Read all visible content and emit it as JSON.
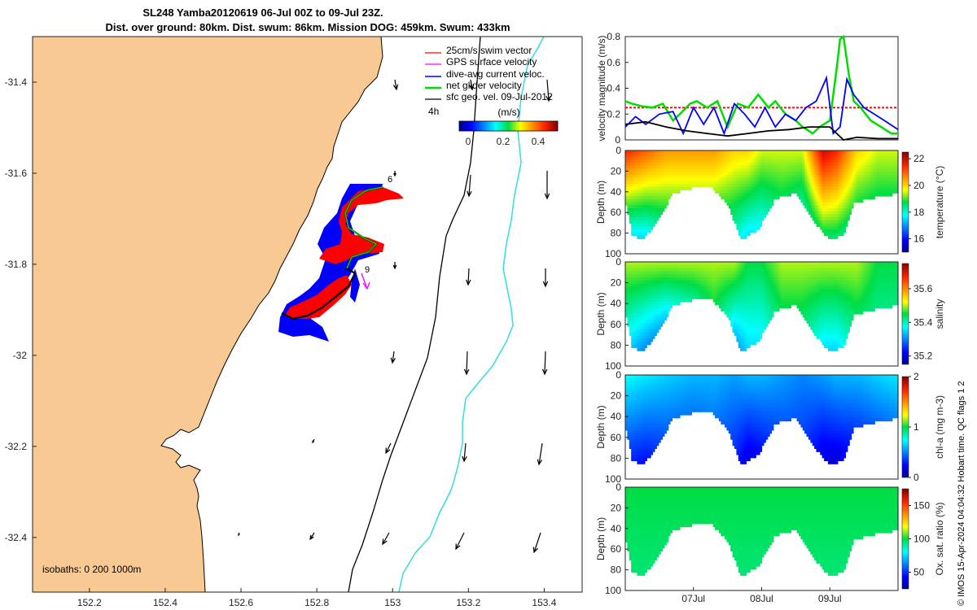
{
  "title": {
    "line1": "SL248 Yamba20120619 06-Jul 00Z to 09-Jul 23Z.",
    "line2": "Dist. over ground: 80km. Dist. swum: 86km. Mission DOG: 459km. Swum: 433km"
  },
  "map": {
    "x_ticks": [
      "152.2",
      "152.4",
      "152.6",
      "152.8",
      "153",
      "153.2",
      "153.4"
    ],
    "y_ticks": [
      "-31.4",
      "-31.6",
      "-31.8",
      "-32",
      "-32.2",
      "-32.4"
    ],
    "xlim": [
      152.05,
      153.5
    ],
    "ylim": [
      -32.52,
      -31.3
    ],
    "legend": [
      {
        "label": "25cm/s swim vector",
        "color": "#ff0000"
      },
      {
        "label": "GPS surface velocity",
        "color": "#ff00ff"
      },
      {
        "label": "dive-avg current veloc.",
        "color": "#0000ff"
      },
      {
        "label": "net glider velocity",
        "color": "#00dd00"
      },
      {
        "label": "sfc geo. vel. 09-Jul-2012",
        "color": "#000000"
      }
    ],
    "interval_label": "4h",
    "colorbar": {
      "label": "(m/s)",
      "ticks": [
        "0",
        "0.2",
        "0.4"
      ]
    },
    "day_markers": [
      "6",
      "9"
    ],
    "isobaths_label": "isobaths: 0   200  1000m",
    "land_color": "#f9c994"
  },
  "colors": {
    "red": "#ff0000",
    "blue": "#0000ff",
    "green": "#00dd00",
    "black": "#000000",
    "cyan": "#33dddd"
  },
  "chart_data": [
    {
      "type": "line",
      "title": "",
      "ylabel": "velocity magnitude (m/s)",
      "ylim": [
        0,
        0.8
      ],
      "y_ticks": [
        "0",
        "0.2",
        "0.4",
        "0.6",
        "0.8"
      ],
      "x_day_range": [
        6.0,
        10.0
      ],
      "series": [
        {
          "name": "25cm/s swim vector",
          "color": "#ff0000",
          "x": [
            6.0,
            10.0
          ],
          "y": [
            0.25,
            0.25
          ]
        },
        {
          "name": "net glider velocity",
          "color": "#00dd00",
          "x": [
            6.0,
            6.1,
            6.25,
            6.4,
            6.55,
            6.7,
            6.8,
            6.95,
            7.05,
            7.2,
            7.35,
            7.5,
            7.65,
            7.8,
            7.95,
            8.1,
            8.2,
            8.35,
            8.5,
            8.6,
            8.75,
            8.85,
            9.0,
            9.1,
            9.15,
            9.2,
            9.28,
            9.35,
            9.45,
            9.6,
            9.75,
            9.9,
            10.0
          ],
          "y": [
            0.3,
            0.28,
            0.26,
            0.25,
            0.28,
            0.15,
            0.2,
            0.28,
            0.3,
            0.25,
            0.3,
            0.1,
            0.28,
            0.25,
            0.35,
            0.25,
            0.3,
            0.2,
            0.15,
            0.1,
            0.05,
            0.1,
            0.15,
            0.55,
            0.78,
            0.8,
            0.5,
            0.3,
            0.25,
            0.15,
            0.1,
            0.05,
            0.05
          ]
        },
        {
          "name": "dive-avg current veloc.",
          "color": "#0000ff",
          "x": [
            6.0,
            6.15,
            6.3,
            6.5,
            6.7,
            6.85,
            7.0,
            7.15,
            7.3,
            7.45,
            7.6,
            7.75,
            7.9,
            8.05,
            8.2,
            8.35,
            8.5,
            8.65,
            8.8,
            8.95,
            9.05,
            9.15,
            9.25,
            9.35,
            9.5,
            9.65,
            9.8,
            10.0
          ],
          "y": [
            0.1,
            0.18,
            0.12,
            0.2,
            0.22,
            0.05,
            0.25,
            0.12,
            0.25,
            0.05,
            0.28,
            0.2,
            0.1,
            0.25,
            0.1,
            0.2,
            0.15,
            0.25,
            0.3,
            0.48,
            0.05,
            0.1,
            0.47,
            0.35,
            0.25,
            0.2,
            0.15,
            0.08
          ]
        },
        {
          "name": "sfc geo. vel. 09-Jul-2012",
          "color": "#000000",
          "x": [
            6.0,
            6.3,
            6.6,
            6.9,
            7.2,
            7.5,
            7.8,
            8.1,
            8.4,
            8.7,
            9.0,
            9.2,
            9.4,
            9.7,
            10.0
          ],
          "y": [
            0.12,
            0.14,
            0.1,
            0.07,
            0.05,
            0.03,
            0.05,
            0.07,
            0.08,
            0.1,
            0.1,
            0.0,
            0.02,
            0.01,
            0.01
          ]
        }
      ]
    },
    {
      "type": "heatmap",
      "ylabel": "Depth (m)",
      "clabel": "temperature (°C)",
      "ylim": [
        100,
        0
      ],
      "y_ticks": [
        "0",
        "20",
        "40",
        "60",
        "80",
        "100"
      ],
      "c_ticks": [
        "22",
        "20",
        "18",
        "16"
      ],
      "crange": [
        15,
        22.5
      ],
      "x_day_range": [
        6.0,
        10.0
      ],
      "profile_depth": {
        "x": [
          6.0,
          6.1,
          6.25,
          6.45,
          6.7,
          7.0,
          7.25,
          7.5,
          7.7,
          7.95,
          8.2,
          8.5,
          8.8,
          9.0,
          9.2,
          9.35,
          9.6,
          10.0
        ],
        "y": [
          45,
          80,
          85,
          70,
          40,
          35,
          33,
          50,
          85,
          75,
          45,
          40,
          70,
          85,
          80,
          50,
          45,
          40
        ]
      },
      "columns": {
        "x": [
          6.0,
          6.3,
          6.6,
          7.0,
          7.3,
          7.6,
          7.8,
          8.0,
          8.3,
          8.6,
          8.9,
          9.1,
          9.4,
          9.7,
          10.0
        ],
        "surface": [
          21.5,
          21.0,
          20.5,
          20.5,
          20.5,
          20.0,
          20.0,
          19.5,
          19.5,
          19.5,
          22.0,
          21.5,
          20.0,
          19.5,
          19.5
        ],
        "bottom": [
          17.5,
          17.5,
          18.0,
          18.0,
          18.0,
          18.0,
          17.5,
          17.5,
          18.0,
          17.5,
          18.5,
          18.5,
          18.0,
          18.0,
          18.0
        ]
      }
    },
    {
      "type": "heatmap",
      "ylabel": "Depth (m)",
      "clabel": "salinity",
      "ylim": [
        100,
        0
      ],
      "y_ticks": [
        "0",
        "20",
        "40",
        "60",
        "80",
        "100"
      ],
      "c_ticks": [
        "35.6",
        "35.4",
        "35.2"
      ],
      "crange": [
        35.15,
        35.75
      ],
      "x_day_range": [
        6.0,
        10.0
      ],
      "profile_depth": {
        "x": [
          6.0,
          6.1,
          6.25,
          6.45,
          6.7,
          7.0,
          7.25,
          7.5,
          7.7,
          7.95,
          8.2,
          8.5,
          8.8,
          9.0,
          9.2,
          9.35,
          9.6,
          10.0
        ],
        "y": [
          45,
          80,
          85,
          70,
          40,
          35,
          33,
          50,
          85,
          75,
          45,
          40,
          70,
          85,
          80,
          50,
          45,
          40
        ]
      },
      "columns": {
        "x": [
          6.0,
          6.3,
          6.6,
          7.0,
          7.3,
          7.6,
          7.8,
          8.0,
          8.3,
          8.6,
          8.9,
          9.1,
          9.4,
          9.7,
          10.0
        ],
        "surface": [
          35.5,
          35.5,
          35.5,
          35.5,
          35.5,
          35.5,
          35.45,
          35.45,
          35.5,
          35.5,
          35.5,
          35.5,
          35.5,
          35.45,
          35.45
        ],
        "bottom": [
          35.35,
          35.3,
          35.25,
          35.3,
          35.4,
          35.3,
          35.35,
          35.35,
          35.4,
          35.4,
          35.35,
          35.35,
          35.4,
          35.4,
          35.4
        ]
      }
    },
    {
      "type": "heatmap",
      "ylabel": "Depth (m)",
      "clabel": "chl-a (mg m-3)",
      "ylim": [
        100,
        0
      ],
      "y_ticks": [
        "0",
        "20",
        "40",
        "60",
        "80",
        "100"
      ],
      "c_ticks": [
        "2",
        "1",
        "0"
      ],
      "crange": [
        0,
        2
      ],
      "x_day_range": [
        6.0,
        10.0
      ],
      "profile_depth": {
        "x": [
          6.0,
          6.1,
          6.25,
          6.45,
          6.7,
          7.0,
          7.25,
          7.5,
          7.7,
          7.95,
          8.2,
          8.5,
          8.8,
          9.0,
          9.2,
          9.35,
          9.6,
          10.0
        ],
        "y": [
          45,
          80,
          85,
          70,
          40,
          35,
          33,
          50,
          85,
          75,
          45,
          40,
          70,
          85,
          80,
          50,
          45,
          40
        ]
      },
      "columns": {
        "x": [
          6.0,
          6.3,
          6.6,
          7.0,
          7.3,
          7.6,
          7.8,
          8.0,
          8.3,
          8.6,
          8.9,
          9.1,
          9.4,
          9.7,
          10.0
        ],
        "surface": [
          0.75,
          0.7,
          0.65,
          0.6,
          0.6,
          0.55,
          0.6,
          0.6,
          0.55,
          0.5,
          0.55,
          0.6,
          0.6,
          0.65,
          0.7
        ],
        "bottom": [
          0.3,
          0.25,
          0.3,
          0.3,
          0.35,
          0.3,
          0.15,
          0.2,
          0.3,
          0.3,
          0.15,
          0.15,
          0.2,
          0.25,
          0.3
        ]
      }
    },
    {
      "type": "heatmap",
      "ylabel": "Depth (m)",
      "clabel": "Ox. sat. ratio (%)",
      "ylim": [
        100,
        0
      ],
      "y_ticks": [
        "0",
        "20",
        "40",
        "60",
        "80",
        "100"
      ],
      "c_ticks": [
        "150",
        "100",
        "50"
      ],
      "crange": [
        25,
        175
      ],
      "x_day_range": [
        6.0,
        10.0
      ],
      "x_ticks": [
        "07Jul",
        "08Jul",
        "09Jul"
      ],
      "profile_depth": {
        "x": [
          6.0,
          6.1,
          6.25,
          6.45,
          6.7,
          7.0,
          7.25,
          7.5,
          7.7,
          7.95,
          8.2,
          8.5,
          8.8,
          9.0,
          9.2,
          9.35,
          9.6,
          10.0
        ],
        "y": [
          45,
          80,
          85,
          70,
          40,
          35,
          33,
          50,
          85,
          75,
          45,
          40,
          70,
          85,
          80,
          50,
          45,
          40
        ]
      },
      "columns": {
        "x": [
          6.0,
          6.5,
          7.0,
          7.5,
          8.0,
          8.5,
          9.0,
          9.5,
          10.0
        ],
        "surface": [
          100,
          100,
          100,
          100,
          100,
          100,
          100,
          100,
          100
        ],
        "bottom": [
          95,
          95,
          95,
          95,
          95,
          95,
          95,
          95,
          95
        ]
      }
    }
  ],
  "footer": {
    "credit": "© IMOS 15-Apr-2024 04:04:32 Hobart time. QC flags 1  2"
  }
}
